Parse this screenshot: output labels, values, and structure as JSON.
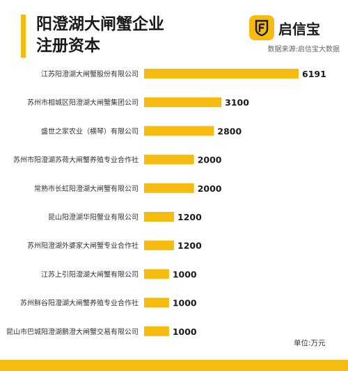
{
  "header": {
    "title_line1": "阳澄湖大闸蟹企业",
    "title_line2": "注册资本",
    "logo_text": "启信宝",
    "source": "数据来源:启信宝大数据"
  },
  "unit_label": "单位:万元",
  "colors": {
    "accent": "#f6bb10",
    "text": "#222222"
  },
  "icons": {
    "logo": "qixinbao-logo-icon"
  },
  "chart_data": {
    "type": "bar",
    "orientation": "horizontal",
    "categories": [
      "江苏阳澄湖大闸蟹股份有限公司",
      "苏州市相城区阳澄湖大闸蟹集团公司",
      "盛世之家农业（横琴）有限公司",
      "苏州市阳澄湖苏荷大闸蟹养殖专业合作社",
      "常熟市长虹阳澄湖大闸蟹有限公司",
      "昆山阳澄湖华阳蟹业有限公司",
      "苏州阳澄湖外婆家大闸蟹专业合作社",
      "江苏上引阳澄湖大闸蟹有限公司",
      "苏州鲜谷阳澄湖大闸蟹养殖专业合作社",
      "昆山市巴城阳澄湖鹏澄大闸蟹交易有限公司"
    ],
    "values": [
      6191,
      3100,
      2800,
      2000,
      2000,
      1200,
      1200,
      1000,
      1000,
      1000
    ],
    "data_labels": [
      "6191",
      "3100",
      "2800",
      "2000",
      "2000",
      "1200",
      "1200",
      "1000",
      "1000",
      "1000"
    ],
    "xlim": [
      0,
      6191
    ],
    "grid": false,
    "legend": "none"
  }
}
